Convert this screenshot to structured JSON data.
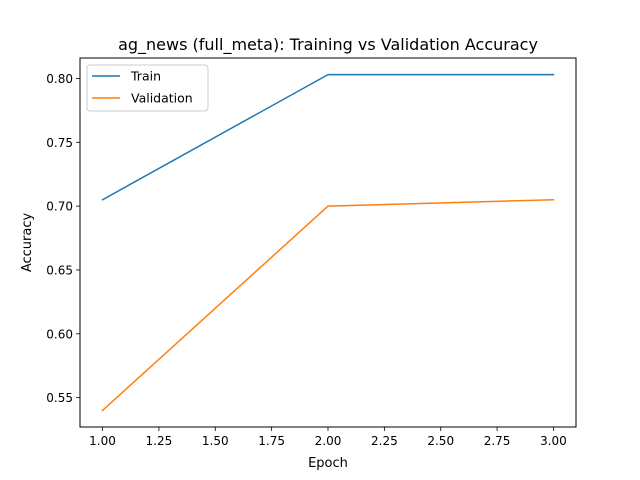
{
  "chart_data": {
    "type": "line",
    "title": "ag_news (full_meta): Training vs Validation Accuracy",
    "xlabel": "Epoch",
    "ylabel": "Accuracy",
    "x": [
      1.0,
      2.0,
      3.0
    ],
    "xlim": [
      0.9,
      3.1
    ],
    "ylim": [
      0.527,
      0.816
    ],
    "xticks": [
      1.0,
      1.25,
      1.5,
      1.75,
      2.0,
      2.25,
      2.5,
      2.75,
      3.0
    ],
    "xtick_labels": [
      "1.00",
      "1.25",
      "1.50",
      "1.75",
      "2.00",
      "2.25",
      "2.50",
      "2.75",
      "3.00"
    ],
    "yticks": [
      0.55,
      0.6,
      0.65,
      0.7,
      0.75,
      0.8
    ],
    "ytick_labels": [
      "0.55",
      "0.60",
      "0.65",
      "0.70",
      "0.75",
      "0.80"
    ],
    "grid": false,
    "legend_position": "upper-left",
    "series": [
      {
        "name": "Train",
        "color": "#1f77b4",
        "values": [
          0.705,
          0.803,
          0.803
        ]
      },
      {
        "name": "Validation",
        "color": "#ff7f0e",
        "values": [
          0.54,
          0.7,
          0.705
        ]
      }
    ]
  }
}
